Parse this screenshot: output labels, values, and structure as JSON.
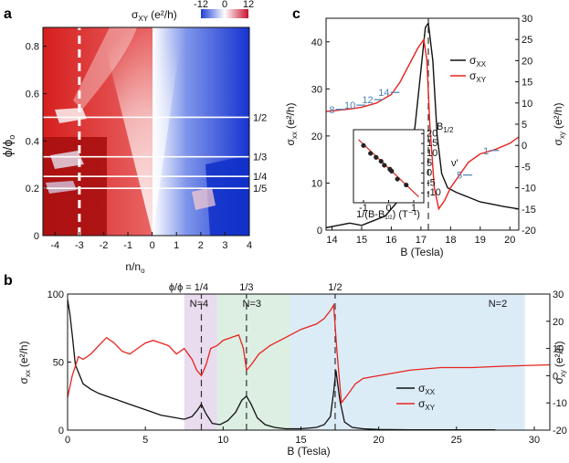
{
  "colors": {
    "sxx": "#111111",
    "sxy": "#e8231f",
    "red": "#c8102e",
    "blue": "#1f3fd6",
    "annBlue": "#4a7fb5",
    "bandN4": "#e9dcef",
    "bandN3": "#dcefe2",
    "bandN2": "#dcecf7",
    "N4text": "#8e3fa0",
    "N3text": "#2a8a4a",
    "N2text": "#3a5fb5"
  },
  "chart_data": [
    {
      "panel": "a",
      "type": "heatmap",
      "xlabel": "n/n",
      "xlabel_sub": "o",
      "ylabel": "ϕ/ϕ",
      "ylabel_sub": "o",
      "xlim": [
        -4.5,
        4
      ],
      "ylim": [
        0,
        0.88
      ],
      "x_ticks": [
        -4,
        -3,
        -2,
        -1,
        0,
        1,
        2,
        3,
        4
      ],
      "y_ticks": [
        0,
        0.2,
        0.4,
        0.6,
        0.8
      ],
      "colorbar": {
        "label": "σ",
        "label_sub": "XY",
        "unit": "(e²/h)",
        "ticks": [
          -12,
          0,
          12
        ]
      },
      "white_lines_phi": [
        0.5,
        0.333,
        0.25,
        0.2
      ],
      "white_line_labels": [
        "1/2",
        "1/3",
        "1/4",
        "1/5"
      ],
      "dashed_x": -3
    },
    {
      "panel": "b",
      "type": "line",
      "xlabel": "B (Tesla)",
      "ylabel_left": "σ",
      "ylabel_left_sub": "xx",
      "ylabel_left_unit": "(e²/h)",
      "ylabel_right": "σ",
      "ylabel_right_sub": "xy",
      "ylabel_right_unit": "(e²/h)",
      "xlim": [
        0,
        31
      ],
      "ylim_left": [
        0,
        100
      ],
      "ylim_right": [
        -20,
        30
      ],
      "x_ticks": [
        0,
        5,
        10,
        15,
        20,
        25,
        30
      ],
      "y_ticks_left": [
        0,
        50,
        100
      ],
      "y_ticks_right": [
        -20,
        -10,
        0,
        10,
        20,
        30
      ],
      "dashed_B": [
        8.6,
        11.5,
        17.2
      ],
      "flux_labels": [
        "ϕ/ϕ = 1/4",
        "1/3",
        "1/2"
      ],
      "bands": [
        {
          "label": "N=4",
          "from": 7.5,
          "to": 9.6
        },
        {
          "label": "N=3",
          "from": 9.6,
          "to": 14.3
        },
        {
          "label": "N=2",
          "from": 14.3,
          "to": 29.4
        }
      ],
      "series": [
        {
          "name": "σ",
          "name_sub": "XX",
          "axis": "left",
          "x": [
            0,
            0.15,
            0.3,
            0.5,
            1,
            1.5,
            2,
            2.5,
            3,
            3.5,
            4,
            5,
            6,
            7,
            7.5,
            8,
            8.3,
            8.6,
            8.9,
            9.3,
            9.8,
            10.3,
            10.8,
            11.2,
            11.5,
            11.8,
            12.2,
            12.7,
            13.3,
            14,
            15,
            16,
            16.5,
            16.9,
            17.1,
            17.25,
            17.5,
            17.8,
            18.3,
            19,
            20,
            22,
            25,
            27.5
          ],
          "values": [
            96,
            85,
            70,
            48,
            34,
            30,
            27,
            25,
            23,
            21,
            19,
            15,
            11,
            9,
            8,
            10,
            14,
            19,
            12,
            5,
            4,
            7,
            13,
            22,
            25,
            19,
            9,
            4,
            2,
            1,
            1,
            2,
            4,
            10,
            28,
            44,
            22,
            6,
            2,
            1,
            0.5,
            0.3,
            0.2,
            0.2
          ]
        },
        {
          "name": "σ",
          "name_sub": "XY",
          "axis": "right",
          "x": [
            0,
            0.3,
            0.7,
            1,
            1.5,
            2,
            2.5,
            3,
            3.5,
            4,
            4.5,
            5,
            5.5,
            6,
            6.5,
            7,
            7.5,
            8,
            8.3,
            8.6,
            8.9,
            9.2,
            9.6,
            10,
            10.5,
            11,
            11.3,
            11.5,
            11.8,
            12.3,
            13,
            14,
            15,
            16,
            16.5,
            16.9,
            17.1,
            17.3,
            17.6,
            18,
            18.5,
            19,
            20,
            21,
            22,
            24,
            26,
            28,
            31
          ],
          "values": [
            -8,
            0,
            7,
            6,
            8,
            11,
            14,
            12,
            9,
            8,
            10,
            12,
            13,
            12,
            11,
            8,
            10,
            6,
            2,
            0,
            4,
            10,
            11,
            13,
            14,
            15,
            10,
            2,
            4,
            8,
            11,
            14,
            17,
            19,
            21,
            24,
            26,
            10,
            -10,
            -7,
            -3,
            -1,
            0,
            1,
            2,
            3,
            3,
            3.5,
            4
          ]
        }
      ]
    },
    {
      "panel": "c",
      "type": "line",
      "xlabel": "B (Tesla)",
      "ylabel_left": "σ",
      "ylabel_left_sub": "xx",
      "ylabel_left_unit": "(e²/h)",
      "ylabel_right": "σ",
      "ylabel_right_sub": "xy",
      "ylabel_right_unit": "(e²/h)",
      "xlim": [
        13.8,
        20.3
      ],
      "ylim_left": [
        0,
        45
      ],
      "ylim_right": [
        -20,
        30
      ],
      "x_ticks": [
        14,
        15,
        16,
        17,
        18,
        19,
        20
      ],
      "y_ticks_left": [
        0,
        10,
        20,
        30,
        40
      ],
      "y_ticks_right": [
        -20,
        -15,
        -10,
        -5,
        0,
        5,
        10,
        15,
        20,
        25,
        30
      ],
      "dashed_B": 17.25,
      "dashed_label": "B",
      "dashed_label_sub": "1/2",
      "plateau_labels": [
        "8",
        "10",
        "12",
        "14",
        "1",
        "5"
      ],
      "series": [
        {
          "name": "σ",
          "name_sub": "XX",
          "axis": "left",
          "x": [
            13.8,
            14.2,
            14.6,
            15.0,
            15.4,
            15.8,
            16.2,
            16.5,
            16.8,
            17.0,
            17.15,
            17.25,
            17.4,
            17.55,
            17.7,
            17.9,
            18.2,
            18.6,
            19.0,
            19.4,
            19.8,
            20.3
          ],
          "values": [
            0.5,
            1,
            1.5,
            1,
            2,
            3,
            6,
            12,
            22,
            34,
            43,
            44,
            36,
            20,
            12,
            9,
            8,
            7,
            6,
            5.5,
            5,
            4.5
          ]
        },
        {
          "name": "σ",
          "name_sub": "XY",
          "axis": "right",
          "x": [
            13.8,
            14.5,
            15.0,
            15.5,
            16.0,
            16.3,
            16.6,
            16.9,
            17.1,
            17.2,
            17.3,
            17.45,
            17.6,
            17.8,
            18.0,
            18.3,
            18.6,
            19.0,
            19.5,
            20.0,
            20.3
          ],
          "values": [
            8,
            8.5,
            9,
            10,
            12,
            15,
            19,
            23,
            25,
            20,
            5,
            -10,
            -15,
            -13,
            -10,
            -7,
            -4,
            -2,
            -1,
            0.5,
            2
          ]
        }
      ],
      "inset": {
        "xlabel": "1/(B-B",
        "xlabel_sub": "1/2",
        "xlabel_tail": ") (T⁻¹)",
        "ylabel": "ν'",
        "xlim": [
          -1.4,
          1.4
        ],
        "ylim": [
          -15,
          22
        ],
        "x_ticks": [
          -1,
          0,
          1
        ],
        "y_ticks": [
          -10,
          -5,
          0,
          5,
          10,
          15,
          20
        ],
        "points_x": [
          -1,
          -0.72,
          -0.5,
          -0.3,
          -0.17,
          0.05,
          0.12,
          0.35,
          0.7
        ],
        "points_y": [
          14,
          10,
          8,
          6,
          4,
          2,
          1,
          -3,
          -6
        ],
        "fit": {
          "x": [
            -1.2,
            1.2
          ],
          "y": [
            17,
            -12
          ]
        }
      }
    }
  ]
}
